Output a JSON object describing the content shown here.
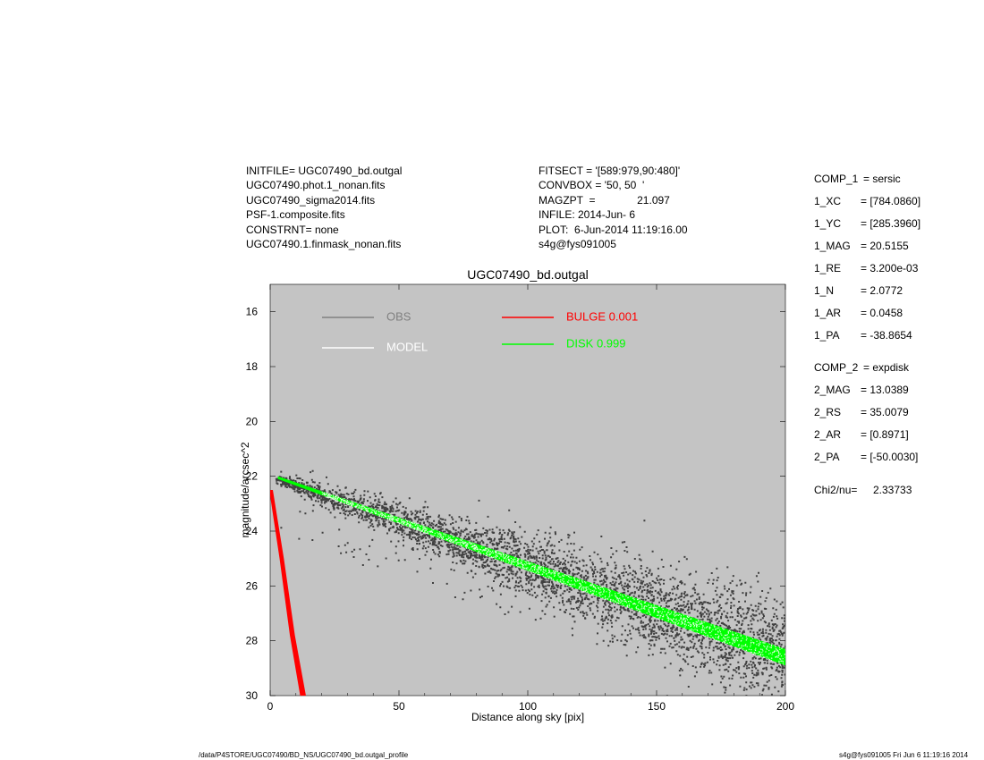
{
  "header": {
    "left": [
      "INITFILE= UGC07490_bd.outgal",
      "UGC07490.phot.1_nonan.fits",
      "UGC07490_sigma2014.fits",
      "PSF-1.composite.fits",
      "CONSTRNT= none",
      "UGC07490.1.finmask_nonan.fits"
    ],
    "middle": [
      "FITSECT = '[589:979,90:480]'",
      "CONVBOX = '50, 50  '",
      "MAGZPT  =              21.097",
      "INFILE: 2014-Jun- 6",
      "PLOT:  6-Jun-2014 11:19:16.00",
      "s4g@fys091005"
    ]
  },
  "components": [
    {
      "key": "COMP_1",
      "value": "= sersic"
    },
    {
      "key": "1_XC",
      "value": "= [784.0860]"
    },
    {
      "key": "1_YC",
      "value": "= [285.3960]"
    },
    {
      "key": "1_MAG",
      "value": "= 20.5155"
    },
    {
      "key": "1_RE",
      "value": "= 3.200e-03"
    },
    {
      "key": "1_N",
      "value": "= 2.0772"
    },
    {
      "key": "1_AR",
      "value": "= 0.0458"
    },
    {
      "key": "1_PA",
      "value": "= -38.8654"
    },
    {
      "key": "COMP_2",
      "value": "= expdisk"
    },
    {
      "key": "2_MAG",
      "value": "= 13.0389"
    },
    {
      "key": "2_RS",
      "value": "= 35.0079"
    },
    {
      "key": "2_AR",
      "value": "= [0.8971]"
    },
    {
      "key": "2_PA",
      "value": "= [-50.0030]"
    }
  ],
  "chi2": {
    "key": "Chi2/nu=",
    "value": "2.33733"
  },
  "footer": {
    "left": "/data/P4STORE/UGC07490/BD_NS/UGC07490_bd.outgal_profile",
    "right": "s4g@fys091005  Fri Jun  6 11:19:16 2014"
  },
  "chart_data": {
    "type": "scatter",
    "title": "UGC07490_bd.outgal",
    "xlabel": "Distance along sky [pix]",
    "ylabel": "magnitude/arcsec^2",
    "xlim": [
      0,
      200
    ],
    "ylim": [
      30,
      15
    ],
    "y_inverted": true,
    "xticks": [
      "0",
      "50",
      "100",
      "150",
      "200"
    ],
    "yticks": [
      "16",
      "18",
      "20",
      "22",
      "24",
      "26",
      "28",
      "30"
    ],
    "background": "#c4c4c4",
    "legend": [
      {
        "label": "OBS",
        "color": "#808080"
      },
      {
        "label": "MODEL",
        "color": "#ffffff"
      },
      {
        "label": "BULGE  0.001",
        "color": "#ff0000"
      },
      {
        "label": "DISK  0.999",
        "color": "#00ff00"
      }
    ],
    "series": [
      {
        "name": "OBS",
        "color": "#404040",
        "type": "scatter",
        "x_range": [
          0,
          200
        ],
        "y_at_x0": 22.0,
        "y_at_x200": 28.4
      },
      {
        "name": "DISK  0.999",
        "color": "#00ff00",
        "type": "band",
        "x": [
          3,
          200
        ],
        "y_upper": [
          22.0,
          28.3
        ],
        "y_lower": [
          22.1,
          28.9
        ]
      },
      {
        "name": "BULGE  0.001",
        "color": "#ff0000",
        "type": "band",
        "x": [
          0,
          4,
          8,
          12
        ],
        "y": [
          22.5,
          25.0,
          27.8,
          30.0
        ]
      },
      {
        "name": "MODEL",
        "color": "#ffffff",
        "type": "band",
        "x": [
          3,
          200
        ],
        "y_upper": [
          22.0,
          28.3
        ],
        "y_lower": [
          22.1,
          28.9
        ]
      }
    ]
  }
}
